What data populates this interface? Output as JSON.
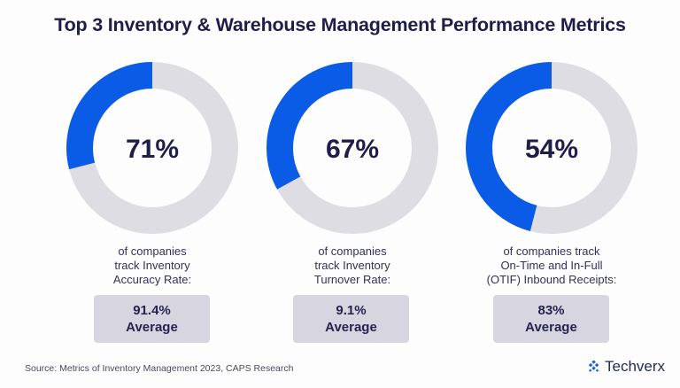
{
  "title": "Top 3 Inventory & Warehouse Management Performance Metrics",
  "colors": {
    "accent": "#0a5ce6",
    "track": "#dedde3",
    "text": "#1f1d4a",
    "box": "#d7d6e0"
  },
  "chart_data": {
    "type": "pie",
    "title": "Top 3 Inventory & Warehouse Management Performance Metrics",
    "note": "Donut charts; the highlighted blue arc shows the complement (100 - value) drawn counterclockwise from top",
    "series": [
      {
        "name": "Inventory Accuracy Rate",
        "value": 71,
        "label": "71%",
        "description": [
          "of companies",
          "track Inventory",
          "Accuracy Rate:"
        ],
        "average_value": "91.4%",
        "average_label": "Average"
      },
      {
        "name": "Inventory Turnover Rate",
        "value": 67,
        "label": "67%",
        "description": [
          "of companies",
          "track Inventory",
          "Turnover Rate:"
        ],
        "average_value": "9.1%",
        "average_label": "Average"
      },
      {
        "name": "On-Time and In-Full (OTIF) Inbound Receipts",
        "value": 54,
        "label": "54%",
        "description": [
          "of companies track",
          "On-Time and In-Full",
          "(OTIF) Inbound Receipts:"
        ],
        "average_value": "83%",
        "average_label": "Average"
      }
    ]
  },
  "footer": {
    "source": "Source: Metrics of Inventory Management 2023, CAPS Research",
    "brand": "Techverx",
    "brand_icon": "techverx-logo-icon"
  }
}
